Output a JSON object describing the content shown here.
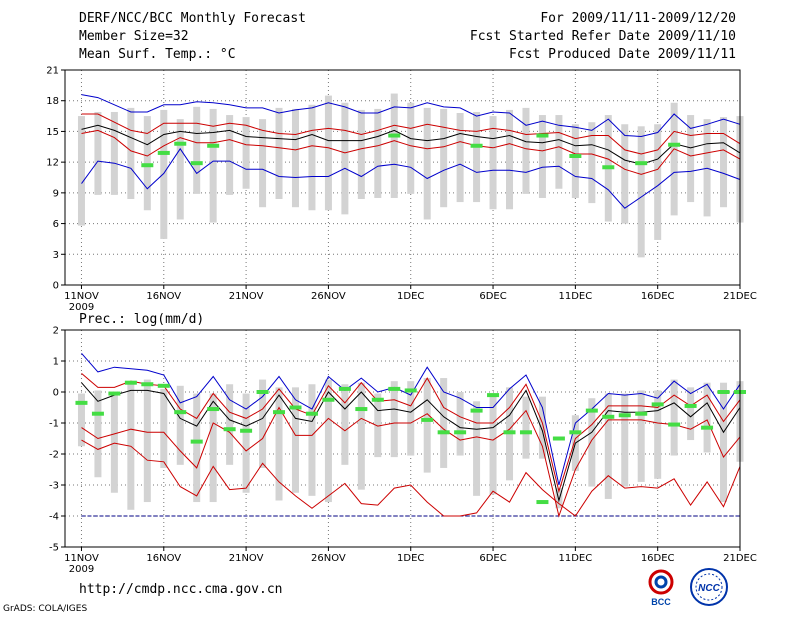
{
  "header": {
    "left": [
      "DERF/NCC/BCC Monthly Forecast",
      "Member Size=32",
      "Mean Surf. Temp.: °C"
    ],
    "right": [
      "For 2009/11/11-2009/12/20",
      "Fcst Started Refer Date 2009/11/10",
      "Fcst Produced Date 2009/11/11"
    ]
  },
  "footer": {
    "url": "http://cmdp.ncc.cma.gov.cn",
    "credit": "GrADS: COLA/IGES"
  },
  "logos": {
    "bcc": "BCC",
    "ncc": "NCC"
  },
  "colors": {
    "mean": "#000000",
    "percentile": "#cc0000",
    "extreme": "#0000cc",
    "spread": "#d3d3d3",
    "marker": "#44dd44",
    "floor": "#000088"
  },
  "chart_data": [
    {
      "type": "line",
      "title": "Mean Surf. Temp.: °C",
      "x_tick_labels": [
        "11NOV",
        "16NOV",
        "21NOV",
        "26NOV",
        "1DEC",
        "6DEC",
        "11DEC",
        "16DEC",
        "21DEC"
      ],
      "x_tick_days": [
        0,
        5,
        10,
        15,
        20,
        25,
        30,
        35,
        40
      ],
      "year_label": "2009",
      "x_range": [
        -1,
        40
      ],
      "ylim": [
        0,
        21
      ],
      "y_ticks": [
        0,
        3,
        6,
        9,
        12,
        15,
        18,
        21
      ],
      "series": [
        {
          "name": "max",
          "role": "extreme",
          "values": [
            18.6,
            18.3,
            17.6,
            16.9,
            16.9,
            17.6,
            17.6,
            17.9,
            17.8,
            17.6,
            17.3,
            17.3,
            16.8,
            17.1,
            17.3,
            17.8,
            17.4,
            16.8,
            16.8,
            17.4,
            17.3,
            17.8,
            17.4,
            17.3,
            16.5,
            16.9,
            16.8,
            15.6,
            16.0,
            15.6,
            15.4,
            15.1,
            16.2,
            14.6,
            14.5,
            14.9,
            16.7,
            15.3,
            15.7,
            16.2,
            15.7
          ]
        },
        {
          "name": "upper",
          "role": "percentile",
          "values": [
            16.7,
            16.7,
            15.9,
            15.1,
            14.8,
            15.8,
            15.8,
            15.8,
            15.5,
            15.8,
            15.6,
            15.1,
            14.8,
            14.7,
            15.1,
            15.3,
            15.1,
            14.7,
            15.1,
            15.6,
            15.3,
            15.7,
            15.4,
            15.1,
            15.0,
            15.3,
            15.1,
            14.7,
            14.8,
            14.9,
            14.3,
            14.6,
            14.6,
            13.2,
            12.8,
            13.2,
            15.0,
            14.6,
            14.8,
            14.8,
            13.8
          ]
        },
        {
          "name": "mean",
          "role": "mean",
          "values": [
            15.2,
            15.6,
            15.1,
            14.4,
            13.7,
            14.7,
            15.0,
            14.8,
            14.9,
            15.1,
            14.5,
            14.4,
            14.3,
            14.2,
            14.7,
            14.1,
            14.1,
            14.1,
            14.5,
            15.1,
            14.3,
            14.1,
            14.3,
            14.8,
            14.5,
            14.3,
            14.6,
            14.0,
            13.9,
            14.2,
            13.6,
            13.7,
            13.2,
            12.2,
            11.8,
            12.3,
            13.8,
            13.4,
            13.8,
            13.9,
            12.9
          ]
        },
        {
          "name": "lower",
          "role": "percentile",
          "values": [
            14.8,
            15.1,
            14.4,
            13.1,
            12.6,
            13.6,
            14.4,
            13.9,
            13.9,
            14.2,
            13.7,
            13.6,
            13.4,
            13.2,
            13.6,
            13.4,
            12.9,
            13.3,
            13.6,
            14.1,
            13.6,
            13.3,
            13.5,
            14.0,
            13.6,
            13.4,
            13.8,
            13.3,
            13.1,
            13.5,
            12.8,
            12.8,
            12.3,
            11.3,
            10.8,
            11.3,
            13.3,
            12.6,
            12.9,
            13.2,
            12.3
          ]
        },
        {
          "name": "min",
          "role": "extreme",
          "values": [
            9.9,
            12.1,
            11.9,
            11.4,
            9.4,
            10.9,
            13.3,
            10.9,
            12.1,
            12.1,
            11.3,
            11.3,
            10.6,
            10.5,
            10.6,
            10.6,
            11.4,
            10.6,
            11.6,
            11.8,
            11.5,
            10.4,
            11.2,
            11.8,
            11.0,
            11.2,
            11.2,
            11.0,
            11.5,
            11.6,
            10.6,
            10.4,
            9.3,
            7.5,
            8.6,
            9.7,
            11.0,
            11.1,
            11.4,
            10.9,
            10.3
          ]
        },
        {
          "name": "observed",
          "role": "marker",
          "values": [
            null,
            null,
            null,
            null,
            11.7,
            12.9,
            13.8,
            11.9,
            13.6,
            null,
            null,
            null,
            null,
            null,
            null,
            null,
            null,
            null,
            null,
            14.6,
            null,
            null,
            null,
            null,
            13.6,
            null,
            null,
            null,
            14.6,
            null,
            12.6,
            null,
            11.5,
            null,
            11.9,
            null,
            13.7,
            null,
            null,
            null,
            null
          ]
        }
      ],
      "bars": {
        "low": [
          5.8,
          8.8,
          8.8,
          8.4,
          7.3,
          4.5,
          6.4,
          8.9,
          6.1,
          8.8,
          9.4,
          7.6,
          8.4,
          7.6,
          7.3,
          7.3,
          6.9,
          8.4,
          8.5,
          8.5,
          8.9,
          6.4,
          7.6,
          8.1,
          8.1,
          7.4,
          7.4,
          8.9,
          8.5,
          9.4,
          8.5,
          8.0,
          6.2,
          6.0,
          2.7,
          4.4,
          6.8,
          8.1,
          6.7,
          7.6,
          6.1
        ],
        "high": [
          16.5,
          16.9,
          16.9,
          17.3,
          16.5,
          17.1,
          16.2,
          17.4,
          17.2,
          16.6,
          16.4,
          16.2,
          17.3,
          17.2,
          17.6,
          18.5,
          17.8,
          17.1,
          17.2,
          18.7,
          17.8,
          17.3,
          17.2,
          16.8,
          16.9,
          16.5,
          17.1,
          17.3,
          16.6,
          16.6,
          15.7,
          15.9,
          16.6,
          15.7,
          15.5,
          15.7,
          17.8,
          16.6,
          16.2,
          16.4,
          16.5
        ]
      }
    },
    {
      "type": "line",
      "title": "Prec.: log(mm/d)",
      "x_tick_labels": [
        "11NOV",
        "16NOV",
        "21NOV",
        "26NOV",
        "1DEC",
        "6DEC",
        "11DEC",
        "16DEC",
        "21DEC"
      ],
      "x_tick_days": [
        0,
        5,
        10,
        15,
        20,
        25,
        30,
        35,
        40
      ],
      "year_label": "2009",
      "x_range": [
        -1,
        40
      ],
      "ylim": [
        -5,
        2
      ],
      "y_ticks": [
        -5,
        -4,
        -3,
        -2,
        -1,
        0,
        1,
        2
      ],
      "floor_value": -4,
      "series": [
        {
          "name": "max",
          "role": "extreme",
          "values": [
            1.25,
            0.65,
            0.8,
            0.75,
            0.7,
            0.55,
            -0.35,
            -0.15,
            0.5,
            -0.25,
            -0.55,
            -0.15,
            0.5,
            -0.25,
            -0.55,
            0.5,
            0.05,
            0.45,
            0.0,
            0.15,
            -0.1,
            0.8,
            0.0,
            -0.2,
            -0.5,
            -0.5,
            0.1,
            0.55,
            -0.5,
            -3.0,
            -1.0,
            -0.55,
            -0.05,
            -0.1,
            -0.05,
            -0.2,
            0.35,
            -0.05,
            0.25,
            -0.55,
            0.25
          ]
        },
        {
          "name": "upper",
          "role": "percentile",
          "values": [
            0.6,
            0.15,
            0.15,
            0.35,
            0.25,
            0.2,
            -0.55,
            -0.85,
            -0.05,
            -0.65,
            -0.85,
            -0.55,
            0.1,
            -0.55,
            -0.75,
            0.2,
            -0.35,
            0.3,
            -0.3,
            -0.25,
            -0.45,
            0.45,
            -0.5,
            -0.8,
            -1.0,
            -1.0,
            -0.5,
            0.25,
            -1.0,
            -3.2,
            -1.5,
            -1.05,
            -0.45,
            -0.45,
            -0.45,
            -0.5,
            -0.1,
            -0.45,
            -0.1,
            -0.95,
            -0.25
          ]
        },
        {
          "name": "mean",
          "role": "mean",
          "values": [
            0.3,
            -0.3,
            -0.1,
            0.05,
            0.05,
            -0.05,
            -0.85,
            -1.1,
            -0.3,
            -0.9,
            -1.1,
            -0.85,
            -0.1,
            -0.85,
            -0.95,
            0.0,
            -0.55,
            0.0,
            -0.6,
            -0.55,
            -0.65,
            -0.25,
            -0.8,
            -1.15,
            -1.2,
            -1.15,
            -0.75,
            0.05,
            -1.25,
            -3.5,
            -1.65,
            -1.3,
            -0.6,
            -0.65,
            -0.65,
            -0.6,
            -0.35,
            -0.8,
            -0.35,
            -1.3,
            -0.5
          ]
        },
        {
          "name": "lower",
          "role": "percentile",
          "values": [
            -1.15,
            -1.5,
            -1.35,
            -1.2,
            -1.3,
            -1.3,
            -1.9,
            -2.45,
            -1.0,
            -1.3,
            -1.9,
            -1.5,
            -0.5,
            -1.4,
            -1.4,
            -0.85,
            -1.25,
            -0.85,
            -1.1,
            -1.0,
            -1.0,
            -0.7,
            -1.2,
            -1.55,
            -1.45,
            -1.55,
            -1.2,
            -0.6,
            -1.75,
            -4.0,
            -2.5,
            -1.55,
            -0.9,
            -0.9,
            -0.9,
            -1.0,
            -1.05,
            -1.2,
            -0.9,
            -2.1,
            -1.45
          ]
        },
        {
          "name": "min",
          "role": "percentile",
          "values": [
            -1.55,
            -1.85,
            -1.65,
            -1.75,
            -2.2,
            -2.25,
            -3.05,
            -3.35,
            -2.4,
            -3.15,
            -3.1,
            -2.3,
            -2.9,
            -3.35,
            -3.75,
            -3.35,
            -2.95,
            -3.6,
            -3.65,
            -3.1,
            -3.0,
            -3.55,
            -4.0,
            -4.0,
            -3.9,
            -3.2,
            -3.55,
            -2.6,
            -3.15,
            -3.6,
            -4.0,
            -3.2,
            -2.7,
            -3.1,
            -3.05,
            -3.1,
            -2.8,
            -3.65,
            -2.9,
            -3.7,
            -2.4
          ]
        },
        {
          "name": "observed",
          "role": "marker",
          "values": [
            -0.35,
            -0.7,
            -0.05,
            0.3,
            0.25,
            0.2,
            -0.65,
            -1.6,
            -0.55,
            -1.2,
            -1.25,
            0.0,
            -0.65,
            -0.5,
            -0.7,
            -0.25,
            0.1,
            -0.55,
            -0.25,
            0.1,
            0.05,
            -0.9,
            -1.3,
            -1.3,
            -0.6,
            -0.1,
            -1.3,
            -1.3,
            -3.55,
            -1.5,
            -1.3,
            -0.6,
            -0.8,
            -0.75,
            -0.7,
            -0.4,
            -1.05,
            -0.45,
            -1.15,
            0.0,
            0.0
          ]
        }
      ],
      "bars": {
        "low": [
          -1.75,
          -2.75,
          -3.25,
          -3.8,
          -3.55,
          -2.45,
          -2.35,
          -3.55,
          -3.55,
          -2.35,
          -3.25,
          -2.45,
          -3.5,
          -3.25,
          -3.35,
          -3.55,
          -2.35,
          -3.15,
          -2.1,
          -2.1,
          -2.05,
          -2.6,
          -2.45,
          -2.05,
          -3.35,
          -3.3,
          -2.85,
          -2.15,
          -2.15,
          -3.75,
          -2.55,
          -3.05,
          -3.45,
          -3.05,
          -2.9,
          -2.8,
          -2.05,
          -1.55,
          -1.95,
          -3.55,
          -2.25
        ],
        "high": [
          -0.05,
          0.05,
          0.0,
          0.25,
          0.4,
          0.1,
          0.2,
          -0.05,
          -0.05,
          0.25,
          -0.05,
          0.4,
          0.15,
          0.15,
          0.25,
          0.4,
          0.25,
          0.3,
          -0.05,
          0.35,
          0.35,
          0.45,
          0.45,
          0.0,
          -0.3,
          -0.15,
          0.15,
          -0.15,
          -0.15,
          -3.1,
          -0.75,
          -0.2,
          -0.05,
          -0.05,
          0.05,
          0.05,
          0.4,
          0.15,
          0.3,
          0.3,
          0.35
        ]
      }
    }
  ]
}
